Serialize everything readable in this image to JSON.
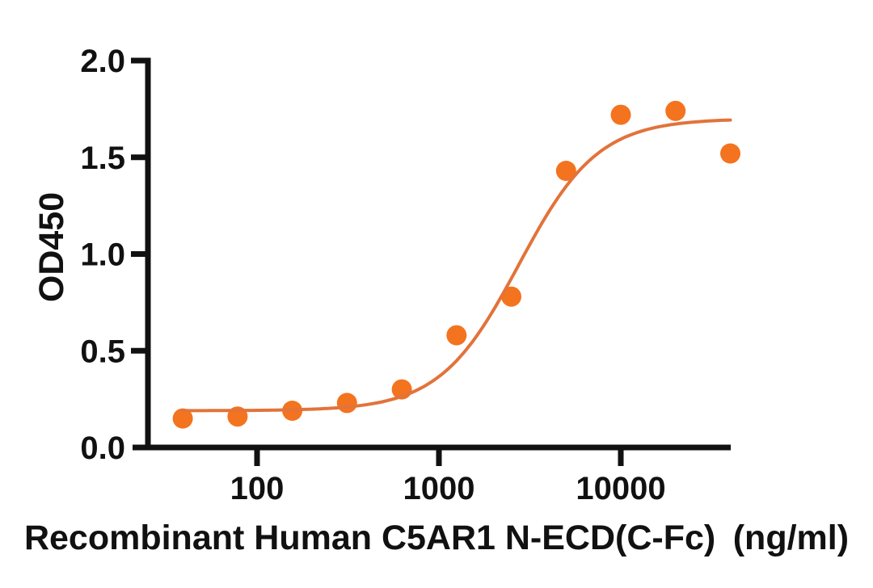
{
  "chart_data": {
    "type": "scatter",
    "title": "",
    "xlabel": "Recombinant Human C5AR1 N-ECD(C-Fc)（ng/ml）",
    "ylabel": "OD450",
    "x_scale": "log10",
    "grid": false,
    "legend": "none",
    "xlim": [
      24,
      40000
    ],
    "ylim": [
      0,
      2
    ],
    "x_ticks": [
      100,
      1000,
      10000
    ],
    "x_tick_labels": [
      "100",
      "1000",
      "10000"
    ],
    "y_ticks": [
      0,
      0.5,
      1,
      1.5,
      2
    ],
    "y_tick_labels": [
      "0.0",
      "0.5",
      "1.0",
      "1.5",
      "2.0"
    ],
    "series": [
      {
        "marker": "filled-circle",
        "marker_color": "#F4731F",
        "x": [
          39.06,
          78.13,
          156.25,
          312.5,
          625,
          1250,
          2500,
          5000,
          10000,
          20000,
          40000
        ],
        "y": [
          0.15,
          0.16,
          0.19,
          0.23,
          0.3,
          0.58,
          0.78,
          1.43,
          1.72,
          1.74,
          1.52
        ]
      }
    ],
    "fit_curve": {
      "model": "4PL-sigmoid",
      "bottom": 0.19,
      "top": 1.7,
      "ec50_ng_ml": 2750,
      "hill_slope": 2.0,
      "color": "#E2733A",
      "x_start": 39.06,
      "x_end": 40000
    },
    "axis_color": "#111111",
    "background": "#FFFFFF"
  }
}
